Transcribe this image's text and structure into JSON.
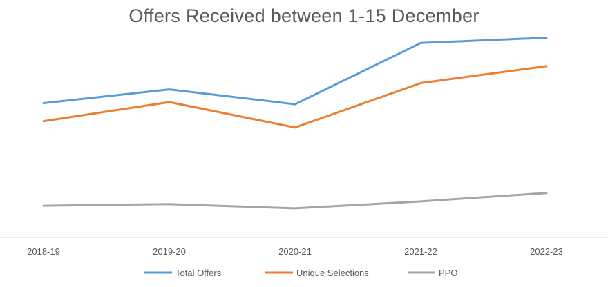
{
  "chart_data": {
    "type": "line",
    "title": "Offers Received between 1-15 December",
    "categories": [
      "2018-19",
      "2019-20",
      "2020-21",
      "2021-22",
      "2022-23"
    ],
    "series": [
      {
        "name": "Total Offers",
        "color": "#5B9BD5",
        "values": [
          1100,
          1230,
          1090,
          1670,
          1720
        ]
      },
      {
        "name": "Unique Selections",
        "color": "#ED7D31",
        "values": [
          930,
          1110,
          870,
          1290,
          1450
        ]
      },
      {
        "name": "PPO",
        "color": "#A5A5A5",
        "values": [
          130,
          145,
          105,
          170,
          250
        ]
      }
    ],
    "ylim": [
      -170,
      1750
    ],
    "grid": false,
    "legend_position": "bottom"
  }
}
